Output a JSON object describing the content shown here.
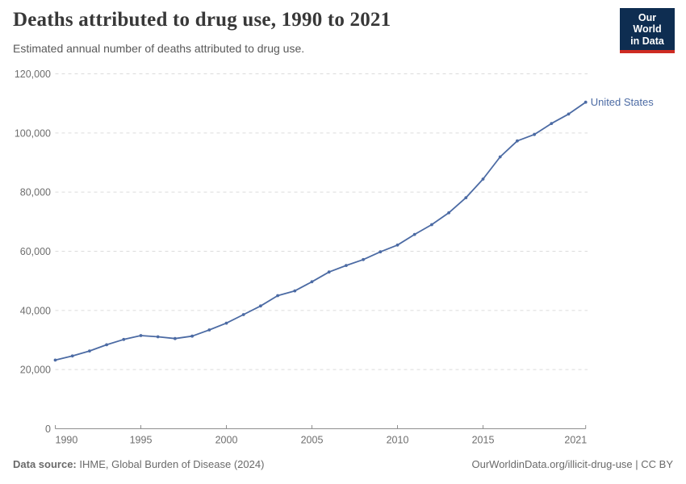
{
  "header": {
    "title": "Deaths attributed to drug use, 1990 to 2021",
    "subtitle": "Estimated annual number of deaths attributed to drug use.",
    "logo": {
      "line1": "Our World",
      "line2": "in Data",
      "bg_color": "#0E2D51",
      "accent_color": "#CE2B22"
    }
  },
  "chart_data": {
    "type": "line",
    "title": "Deaths attributed to drug use, 1990 to 2021",
    "xlabel": "",
    "ylabel": "",
    "xlim": [
      1990,
      2021
    ],
    "ylim": [
      0,
      120000
    ],
    "x_ticks": [
      1990,
      1995,
      2000,
      2005,
      2010,
      2015,
      2021
    ],
    "y_ticks": [
      0,
      20000,
      40000,
      60000,
      80000,
      100000,
      120000
    ],
    "grid": "horizontal-dashed",
    "legend_position": "end-of-line-label",
    "x": [
      1990,
      1991,
      1992,
      1993,
      1994,
      1995,
      1996,
      1997,
      1998,
      1999,
      2000,
      2001,
      2002,
      2003,
      2004,
      2005,
      2006,
      2007,
      2008,
      2009,
      2010,
      2011,
      2012,
      2013,
      2014,
      2015,
      2016,
      2017,
      2018,
      2019,
      2020,
      2021
    ],
    "series": [
      {
        "name": "United States",
        "color": "#4C6BA4",
        "values": [
          23200,
          24600,
          26300,
          28400,
          30200,
          31500,
          31100,
          30500,
          31300,
          33400,
          35700,
          38600,
          41500,
          45000,
          46600,
          49700,
          53000,
          55200,
          57200,
          59800,
          62100,
          65700,
          69000,
          73000,
          78100,
          84400,
          91900,
          97300,
          99500,
          103200,
          106400,
          110400
        ]
      }
    ],
    "style": {
      "gridline_color": "#dcdcdc",
      "axis_color": "#8f8f8f",
      "tick_label_color": "#6e6e6e"
    }
  },
  "footer": {
    "datasource_label": "Data source:",
    "datasource_value": " IHME, Global Burden of Disease (2024)",
    "attribution": "OurWorldinData.org/illicit-drug-use | CC BY"
  }
}
